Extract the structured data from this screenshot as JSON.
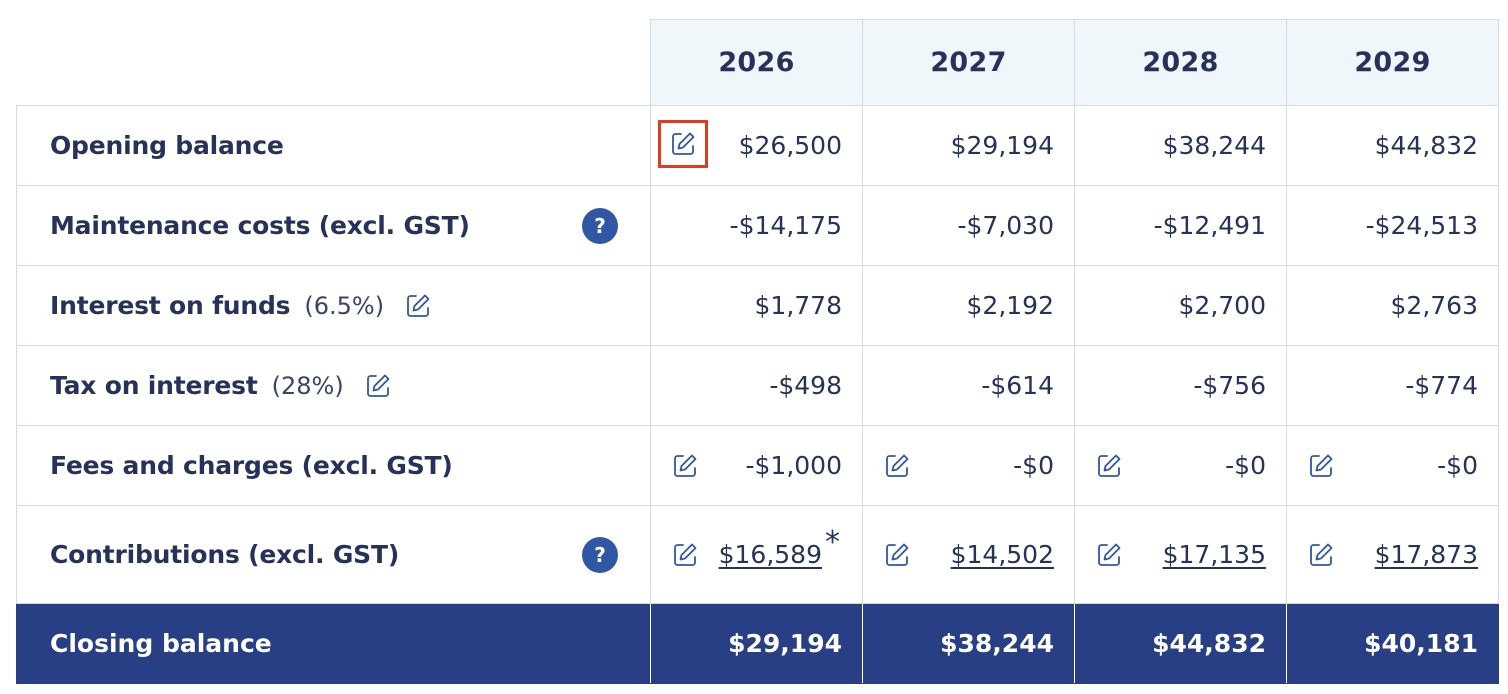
{
  "columns": {
    "years": [
      "2026",
      "2027",
      "2028",
      "2029"
    ]
  },
  "rows": {
    "opening_balance": {
      "label": "Opening balance",
      "values": [
        "$26,500",
        "$29,194",
        "$38,244",
        "$44,832"
      ]
    },
    "maintenance_costs": {
      "label": "Maintenance costs (excl. GST)",
      "help": "?",
      "values": [
        "-$14,175",
        "-$7,030",
        "-$12,491",
        "-$24,513"
      ]
    },
    "interest_on_funds": {
      "label": "Interest on funds",
      "rate": "(6.5%)",
      "values": [
        "$1,778",
        "$2,192",
        "$2,700",
        "$2,763"
      ]
    },
    "tax_on_interest": {
      "label": "Tax on interest",
      "rate": "(28%)",
      "values": [
        "-$498",
        "-$614",
        "-$756",
        "-$774"
      ]
    },
    "fees_and_charges": {
      "label": "Fees and charges (excl. GST)",
      "values": [
        "-$1,000",
        "-$0",
        "-$0",
        "-$0"
      ]
    },
    "contributions": {
      "label": "Contributions (excl. GST)",
      "help": "?",
      "values": [
        "$16,589",
        "$14,502",
        "$17,135",
        "$17,873"
      ],
      "footnote_marker": "*"
    },
    "closing_balance": {
      "label": "Closing balance",
      "values": [
        "$29,194",
        "$38,244",
        "$44,832",
        "$40,181"
      ]
    }
  },
  "icons": {
    "edit": "pencil-square-icon",
    "help": "question-circle-icon"
  },
  "colors": {
    "text": "#26325a",
    "header_bg": "#f0f7fb",
    "border": "#d3dbe8",
    "total_bg": "#283f86",
    "help_bg": "#2f57a4",
    "highlight": "#de3b22"
  }
}
